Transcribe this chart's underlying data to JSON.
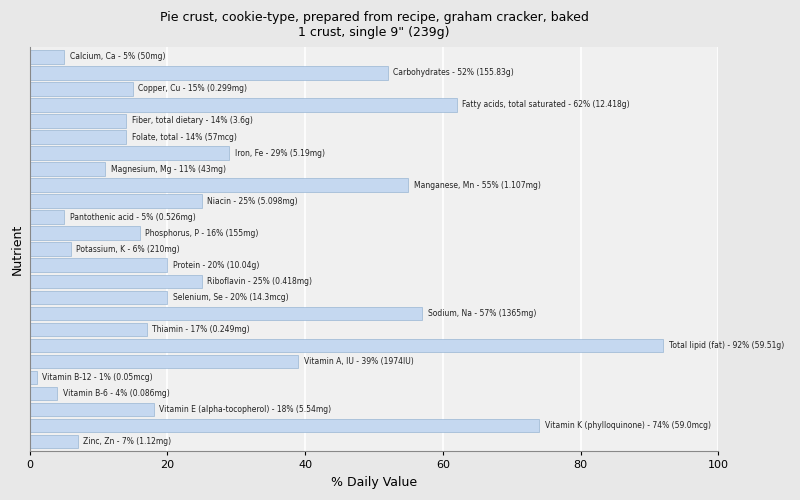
{
  "title": "Pie crust, cookie-type, prepared from recipe, graham cracker, baked\n1 crust, single 9\" (239g)",
  "xlabel": "% Daily Value",
  "ylabel": "Nutrient",
  "xlim": [
    0,
    100
  ],
  "xticks": [
    0,
    20,
    40,
    60,
    80,
    100
  ],
  "background_color": "#e8e8e8",
  "plot_bg_color": "#f0f0f0",
  "bar_color": "#c5d8f0",
  "bar_edge_color": "#88aacc",
  "text_color": "#222222",
  "grid_color": "#ffffff",
  "nutrients": [
    {
      "label": "Calcium, Ca - 5% (50mg)",
      "value": 5
    },
    {
      "label": "Carbohydrates - 52% (155.83g)",
      "value": 52
    },
    {
      "label": "Copper, Cu - 15% (0.299mg)",
      "value": 15
    },
    {
      "label": "Fatty acids, total saturated - 62% (12.418g)",
      "value": 62
    },
    {
      "label": "Fiber, total dietary - 14% (3.6g)",
      "value": 14
    },
    {
      "label": "Folate, total - 14% (57mcg)",
      "value": 14
    },
    {
      "label": "Iron, Fe - 29% (5.19mg)",
      "value": 29
    },
    {
      "label": "Magnesium, Mg - 11% (43mg)",
      "value": 11
    },
    {
      "label": "Manganese, Mn - 55% (1.107mg)",
      "value": 55
    },
    {
      "label": "Niacin - 25% (5.098mg)",
      "value": 25
    },
    {
      "label": "Pantothenic acid - 5% (0.526mg)",
      "value": 5
    },
    {
      "label": "Phosphorus, P - 16% (155mg)",
      "value": 16
    },
    {
      "label": "Potassium, K - 6% (210mg)",
      "value": 6
    },
    {
      "label": "Protein - 20% (10.04g)",
      "value": 20
    },
    {
      "label": "Riboflavin - 25% (0.418mg)",
      "value": 25
    },
    {
      "label": "Selenium, Se - 20% (14.3mcg)",
      "value": 20
    },
    {
      "label": "Sodium, Na - 57% (1365mg)",
      "value": 57
    },
    {
      "label": "Thiamin - 17% (0.249mg)",
      "value": 17
    },
    {
      "label": "Total lipid (fat) - 92% (59.51g)",
      "value": 92
    },
    {
      "label": "Vitamin A, IU - 39% (1974IU)",
      "value": 39
    },
    {
      "label": "Vitamin B-12 - 1% (0.05mcg)",
      "value": 1
    },
    {
      "label": "Vitamin B-6 - 4% (0.086mg)",
      "value": 4
    },
    {
      "label": "Vitamin E (alpha-tocopherol) - 18% (5.54mg)",
      "value": 18
    },
    {
      "label": "Vitamin K (phylloquinone) - 74% (59.0mcg)",
      "value": 74
    },
    {
      "label": "Zinc, Zn - 7% (1.12mg)",
      "value": 7
    }
  ]
}
